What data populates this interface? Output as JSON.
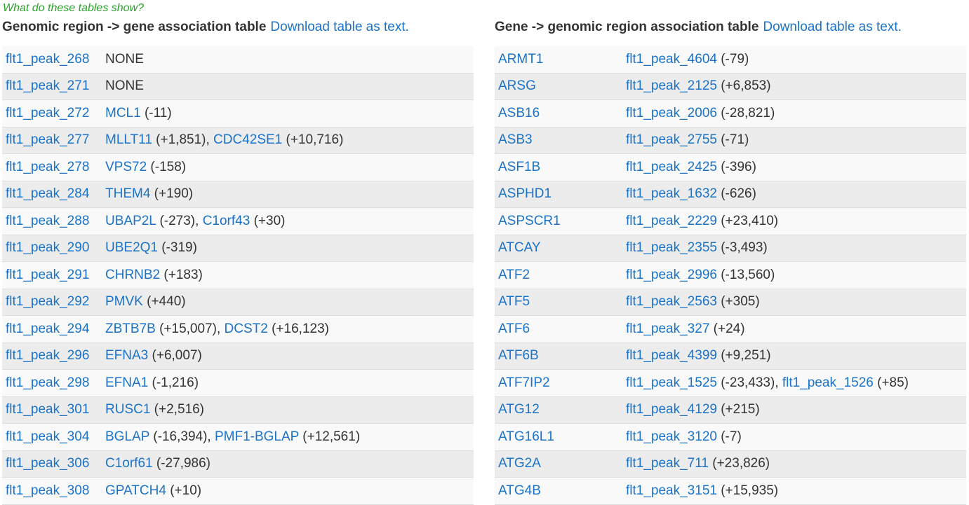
{
  "help_text": "What do these tables show?",
  "left": {
    "title": "Genomic region -> gene association table",
    "download_label": "Download table as text.",
    "rows": [
      {
        "key": "flt1_peak_268",
        "assoc": [],
        "none_text": "NONE"
      },
      {
        "key": "flt1_peak_271",
        "assoc": [],
        "none_text": "NONE"
      },
      {
        "key": "flt1_peak_272",
        "assoc": [
          {
            "name": "MCL1",
            "dist": "(-11)"
          }
        ]
      },
      {
        "key": "flt1_peak_277",
        "assoc": [
          {
            "name": "MLLT11",
            "dist": "(+1,851)"
          },
          {
            "name": "CDC42SE1",
            "dist": "(+10,716)"
          }
        ]
      },
      {
        "key": "flt1_peak_278",
        "assoc": [
          {
            "name": "VPS72",
            "dist": "(-158)"
          }
        ]
      },
      {
        "key": "flt1_peak_284",
        "assoc": [
          {
            "name": "THEM4",
            "dist": "(+190)"
          }
        ]
      },
      {
        "key": "flt1_peak_288",
        "assoc": [
          {
            "name": "UBAP2L",
            "dist": "(-273)"
          },
          {
            "name": "C1orf43",
            "dist": "(+30)"
          }
        ]
      },
      {
        "key": "flt1_peak_290",
        "assoc": [
          {
            "name": "UBE2Q1",
            "dist": "(-319)"
          }
        ]
      },
      {
        "key": "flt1_peak_291",
        "assoc": [
          {
            "name": "CHRNB2",
            "dist": "(+183)"
          }
        ]
      },
      {
        "key": "flt1_peak_292",
        "assoc": [
          {
            "name": "PMVK",
            "dist": "(+440)"
          }
        ]
      },
      {
        "key": "flt1_peak_294",
        "assoc": [
          {
            "name": "ZBTB7B",
            "dist": "(+15,007)"
          },
          {
            "name": "DCST2",
            "dist": "(+16,123)"
          }
        ]
      },
      {
        "key": "flt1_peak_296",
        "assoc": [
          {
            "name": "EFNA3",
            "dist": "(+6,007)"
          }
        ]
      },
      {
        "key": "flt1_peak_298",
        "assoc": [
          {
            "name": "EFNA1",
            "dist": "(-1,216)"
          }
        ]
      },
      {
        "key": "flt1_peak_301",
        "assoc": [
          {
            "name": "RUSC1",
            "dist": "(+2,516)"
          }
        ]
      },
      {
        "key": "flt1_peak_304",
        "assoc": [
          {
            "name": "BGLAP",
            "dist": "(-16,394)"
          },
          {
            "name": "PMF1-BGLAP",
            "dist": "(+12,561)"
          }
        ]
      },
      {
        "key": "flt1_peak_306",
        "assoc": [
          {
            "name": "C1orf61",
            "dist": "(-27,986)"
          }
        ]
      },
      {
        "key": "flt1_peak_308",
        "assoc": [
          {
            "name": "GPATCH4",
            "dist": "(+10)"
          }
        ]
      }
    ]
  },
  "right": {
    "title": "Gene -> genomic region association table",
    "download_label": "Download table as text.",
    "rows": [
      {
        "key": "ARMT1",
        "assoc": [
          {
            "name": "flt1_peak_4604",
            "dist": "(-79)"
          }
        ]
      },
      {
        "key": "ARSG",
        "assoc": [
          {
            "name": "flt1_peak_2125",
            "dist": "(+6,853)"
          }
        ]
      },
      {
        "key": "ASB16",
        "assoc": [
          {
            "name": "flt1_peak_2006",
            "dist": "(-28,821)"
          }
        ]
      },
      {
        "key": "ASB3",
        "assoc": [
          {
            "name": "flt1_peak_2755",
            "dist": "(-71)"
          }
        ]
      },
      {
        "key": "ASF1B",
        "assoc": [
          {
            "name": "flt1_peak_2425",
            "dist": "(-396)"
          }
        ]
      },
      {
        "key": "ASPHD1",
        "assoc": [
          {
            "name": "flt1_peak_1632",
            "dist": "(-626)"
          }
        ]
      },
      {
        "key": "ASPSCR1",
        "assoc": [
          {
            "name": "flt1_peak_2229",
            "dist": "(+23,410)"
          }
        ]
      },
      {
        "key": "ATCAY",
        "assoc": [
          {
            "name": "flt1_peak_2355",
            "dist": "(-3,493)"
          }
        ]
      },
      {
        "key": "ATF2",
        "assoc": [
          {
            "name": "flt1_peak_2996",
            "dist": "(-13,560)"
          }
        ]
      },
      {
        "key": "ATF5",
        "assoc": [
          {
            "name": "flt1_peak_2563",
            "dist": "(+305)"
          }
        ]
      },
      {
        "key": "ATF6",
        "assoc": [
          {
            "name": "flt1_peak_327",
            "dist": "(+24)"
          }
        ]
      },
      {
        "key": "ATF6B",
        "assoc": [
          {
            "name": "flt1_peak_4399",
            "dist": "(+9,251)"
          }
        ]
      },
      {
        "key": "ATF7IP2",
        "assoc": [
          {
            "name": "flt1_peak_1525",
            "dist": "(-23,433)"
          },
          {
            "name": "flt1_peak_1526",
            "dist": "(+85)"
          }
        ]
      },
      {
        "key": "ATG12",
        "assoc": [
          {
            "name": "flt1_peak_4129",
            "dist": "(+215)"
          }
        ]
      },
      {
        "key": "ATG16L1",
        "assoc": [
          {
            "name": "flt1_peak_3120",
            "dist": "(-7)"
          }
        ]
      },
      {
        "key": "ATG2A",
        "assoc": [
          {
            "name": "flt1_peak_711",
            "dist": "(+23,826)"
          }
        ]
      },
      {
        "key": "ATG4B",
        "assoc": [
          {
            "name": "flt1_peak_3151",
            "dist": "(+15,935)"
          }
        ]
      }
    ]
  }
}
